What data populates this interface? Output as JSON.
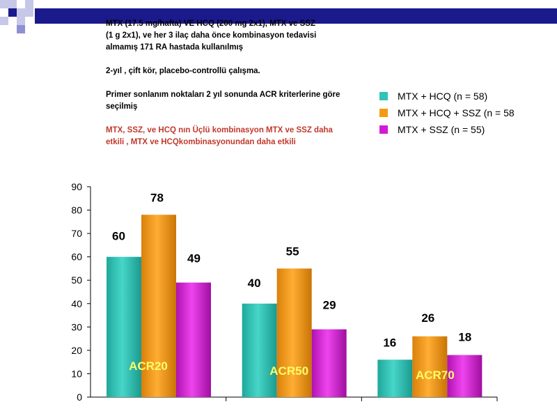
{
  "header_text": {
    "line1": "MTX (17.5 mg/hafta) VE HCQ (200 mg 2x1), MTX ve SSZ",
    "line2": " (1 g 2x1), ve her 3 ilaç daha önce kombinasyon tedavisi",
    "line3": " almamış  171 RA hastada kullanılmış",
    "study": "2-yıl , çift kör, placebo-controllü çalışma.",
    "primary1": "Primer  sonlanım noktaları  2 yıl sonunda ACR kriterlerine göre",
    "primary2": "seçilmiş",
    "conclusion1": "MTX, SSZ, ve HCQ nın  Üçlü kombinasyon MTX ve  SSZ  daha",
    "conclusion2": "etkili  ,  MTX ve  HCQkombinasyonundan daha etkili"
  },
  "legend": [
    {
      "label": "MTX + HCQ (n = 58)",
      "color": "#2ec4b6"
    },
    {
      "label": "MTX + HCQ + SSZ (n = 58",
      "color": "#f39c12"
    },
    {
      "label": "MTX + SSZ (n = 55)",
      "color": "#d31ad3"
    }
  ],
  "chart_data": {
    "type": "bar",
    "categories": [
      "ACR20",
      "ACR50",
      "ACR70"
    ],
    "series": [
      {
        "name": "MTX + HCQ (n = 58)",
        "values": [
          60,
          40,
          16
        ],
        "color": "#2ec4b6"
      },
      {
        "name": "MTX + HCQ + SSZ (n = 58",
        "values": [
          78,
          55,
          26
        ],
        "color": "#f39c12"
      },
      {
        "name": "MTX + SSZ (n = 55)",
        "values": [
          49,
          29,
          18
        ],
        "color": "#d31ad3"
      }
    ],
    "ylim": [
      0,
      90
    ],
    "yticks": [
      0,
      10,
      20,
      30,
      40,
      50,
      60,
      70,
      80,
      90
    ],
    "grid": false,
    "legend_position": "top-right"
  }
}
